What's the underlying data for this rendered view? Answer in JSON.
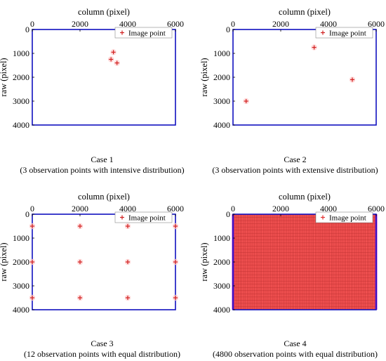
{
  "chart_data": [
    {
      "type": "scatter",
      "xlabel": "column (pixel)",
      "ylabel": "raw (pixel)",
      "xlim": [
        0,
        6000
      ],
      "ylim": [
        0,
        4000
      ],
      "y_reversed": true,
      "xticks": [
        "0",
        "2000",
        "4000",
        "6000"
      ],
      "yticks": [
        "0",
        "1000",
        "2000",
        "3000",
        "4000"
      ],
      "legend": "Image point",
      "legend_position": "top-right",
      "caption_title": "Case 1",
      "caption_sub": "(3 observation points with intensive distribution)",
      "points": [
        [
          3400,
          950
        ],
        [
          3300,
          1250
        ],
        [
          3550,
          1400
        ]
      ],
      "colors": {
        "frame": "#1010c0",
        "marker": "#d02020",
        "marker_center": "#000000"
      }
    },
    {
      "type": "scatter",
      "xlabel": "column (pixel)",
      "ylabel": "raw (pixel)",
      "xlim": [
        0,
        6000
      ],
      "ylim": [
        0,
        4000
      ],
      "y_reversed": true,
      "xticks": [
        "0",
        "2000",
        "4000",
        "6000"
      ],
      "yticks": [
        "0",
        "1000",
        "2000",
        "3000",
        "4000"
      ],
      "legend": "Image point",
      "legend_position": "top-right",
      "caption_title": "Case 2",
      "caption_sub": "(3 observation points with extensive distribution)",
      "points": [
        [
          3400,
          750
        ],
        [
          5000,
          2100
        ],
        [
          550,
          3000
        ]
      ],
      "colors": {
        "frame": "#1010c0",
        "marker": "#d02020",
        "marker_center": "#000000"
      }
    },
    {
      "type": "scatter",
      "xlabel": "column (pixel)",
      "ylabel": "raw (pixel)",
      "xlim": [
        0,
        6000
      ],
      "ylim": [
        0,
        4000
      ],
      "y_reversed": true,
      "xticks": [
        "0",
        "2000",
        "4000",
        "6000"
      ],
      "yticks": [
        "0",
        "1000",
        "2000",
        "3000",
        "4000"
      ],
      "legend": "Image point",
      "legend_position": "top-right",
      "caption_title": "Case 3",
      "caption_sub": "(12 observation points with equal distribution)",
      "points": [
        [
          0,
          500
        ],
        [
          2000,
          500
        ],
        [
          4000,
          500
        ],
        [
          6000,
          500
        ],
        [
          0,
          2000
        ],
        [
          2000,
          2000
        ],
        [
          4000,
          2000
        ],
        [
          6000,
          2000
        ],
        [
          0,
          3500
        ],
        [
          2000,
          3500
        ],
        [
          4000,
          3500
        ],
        [
          6000,
          3500
        ]
      ],
      "colors": {
        "frame": "#1010c0",
        "marker": "#d02020",
        "marker_center": "#000000"
      }
    },
    {
      "type": "scatter",
      "xlabel": "column (pixel)",
      "ylabel": "raw (pixel)",
      "xlim": [
        0,
        6000
      ],
      "ylim": [
        0,
        4000
      ],
      "y_reversed": true,
      "xticks": [
        "0",
        "2000",
        "4000",
        "6000"
      ],
      "yticks": [
        "0",
        "1000",
        "2000",
        "3000",
        "4000"
      ],
      "legend": "Image point",
      "legend_position": "top-right",
      "caption_title": "Case 4",
      "caption_sub": "(4800 observation points with equal distribution)",
      "grid_points": {
        "columns": 80,
        "rows": 60,
        "total": 4800
      },
      "colors": {
        "frame": "#1010c0",
        "marker": "#e43030",
        "fill": "#f05050",
        "grid_line": "#a02020",
        "marker_center": "#000000"
      }
    }
  ]
}
